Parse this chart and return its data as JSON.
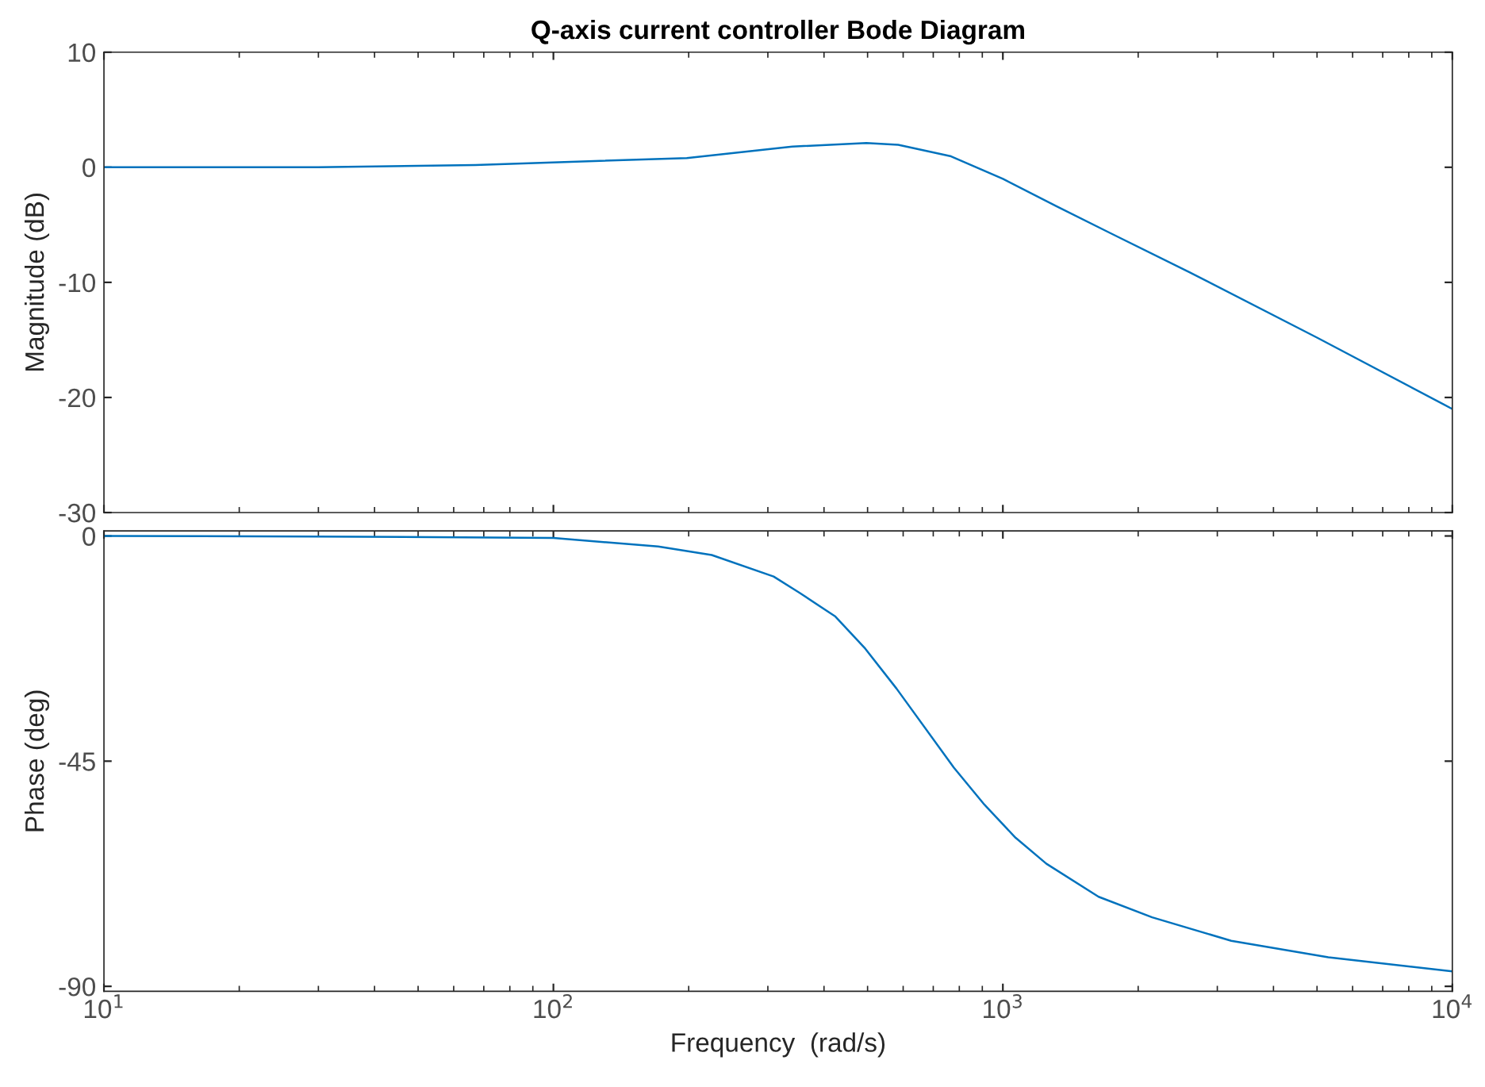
{
  "chart_data": [
    {
      "type": "line",
      "title": "Q-axis current controller Bode Diagram",
      "ylabel": "Magnitude (dB)",
      "log": "x",
      "grid": false,
      "legend": false,
      "tick_labels": "y",
      "xlim": [
        10,
        10000
      ],
      "xticks": [
        {
          "value": 10,
          "label": null
        },
        {
          "value": 100,
          "label": null
        },
        {
          "value": 1000,
          "label": null
        },
        {
          "value": 10000,
          "label": null
        }
      ],
      "ylim": [
        -30,
        10
      ],
      "yticks": [
        -30,
        -20,
        -10,
        0,
        10
      ],
      "series": [
        {
          "color": "#0072bd",
          "x": [
            10,
            30,
            67,
            198,
            340,
            497,
            585,
            767,
            1000,
            1318,
            1730,
            2596,
            5000,
            10000
          ],
          "values": [
            0,
            0,
            0.2,
            0.8,
            1.8,
            2.1,
            1.95,
            0.95,
            -1.0,
            -3.4,
            -5.7,
            -9.1,
            -14.8,
            -21
          ]
        }
      ]
    },
    {
      "type": "line",
      "xlabel": "Frequency  (rad/s)",
      "ylabel": "Phase (deg)",
      "log": "x",
      "grid": false,
      "legend": false,
      "xlim": [
        10,
        10000
      ],
      "xticks": [
        {
          "value": 10,
          "label": "10$^{1}$"
        },
        {
          "value": 100,
          "label": "10$^{2}$"
        },
        {
          "value": 1000,
          "label": "10$^{3}$"
        },
        {
          "value": 10000,
          "label": "10$^{4}$"
        }
      ],
      "ylim": [
        -91,
        1
      ],
      "yticks": [
        -90,
        -45,
        0
      ],
      "series": [
        {
          "color": "#0072bd",
          "x": [
            10,
            30,
            100,
            171,
            225,
            309,
            352,
            424,
            494,
            580,
            778,
            910,
            1067,
            1250,
            1633,
            2148,
            3222,
            5297,
            10000
          ],
          "values": [
            0,
            -0.1,
            -0.4,
            -2.1,
            -3.8,
            -8.1,
            -11.3,
            -16.1,
            -22.5,
            -30.5,
            -46.3,
            -53.7,
            -60.3,
            -65.5,
            -72.1,
            -76.2,
            -80.9,
            -84.2,
            -87.0
          ]
        }
      ]
    }
  ]
}
